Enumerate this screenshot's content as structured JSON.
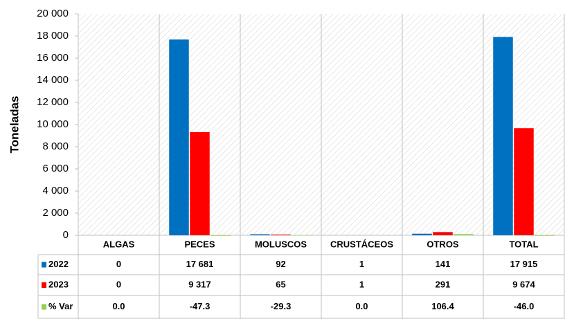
{
  "chart_data": {
    "type": "bar",
    "y_label": "Toneladas",
    "categories": [
      "ALGAS",
      "PECES",
      "MOLUSCOS",
      "CRUSTÁCEOS",
      "OTROS",
      "TOTAL"
    ],
    "series": [
      {
        "name": "2022",
        "color": "#0070c0",
        "values": [
          0,
          17681,
          92,
          1,
          141,
          17915
        ],
        "value_labels": [
          "0",
          "17 681",
          "92",
          "1",
          "141",
          "17 915"
        ]
      },
      {
        "name": "2023",
        "color": "#ff0000",
        "values": [
          0,
          9317,
          65,
          1,
          291,
          9674
        ],
        "value_labels": [
          "0",
          "9 317",
          "65",
          "1",
          "291",
          "9 674"
        ]
      },
      {
        "name": "% Var",
        "color": "#92d050",
        "values": [
          0.0,
          -47.3,
          -29.3,
          0.0,
          106.4,
          -46.0
        ],
        "value_labels": [
          "0.0",
          "-47.3",
          "-29.3",
          "0.0",
          "106.4",
          "-46.0"
        ]
      }
    ],
    "ylim": [
      0,
      20000
    ],
    "yticks": [
      0,
      {
        "value": 2000,
        "label": "2 000"
      },
      {
        "value": 4000,
        "label": "4 000"
      },
      {
        "value": 6000,
        "label": "6 000"
      },
      {
        "value": 8000,
        "label": "8 000"
      },
      {
        "value": 10000,
        "label": "10 000"
      },
      {
        "value": 12000,
        "label": "12 000"
      },
      {
        "value": 14000,
        "label": "14 000"
      },
      {
        "value": 16000,
        "label": "16 000"
      },
      {
        "value": 18000,
        "label": "18 000"
      },
      {
        "value": 20000,
        "label": "20 000"
      }
    ]
  }
}
